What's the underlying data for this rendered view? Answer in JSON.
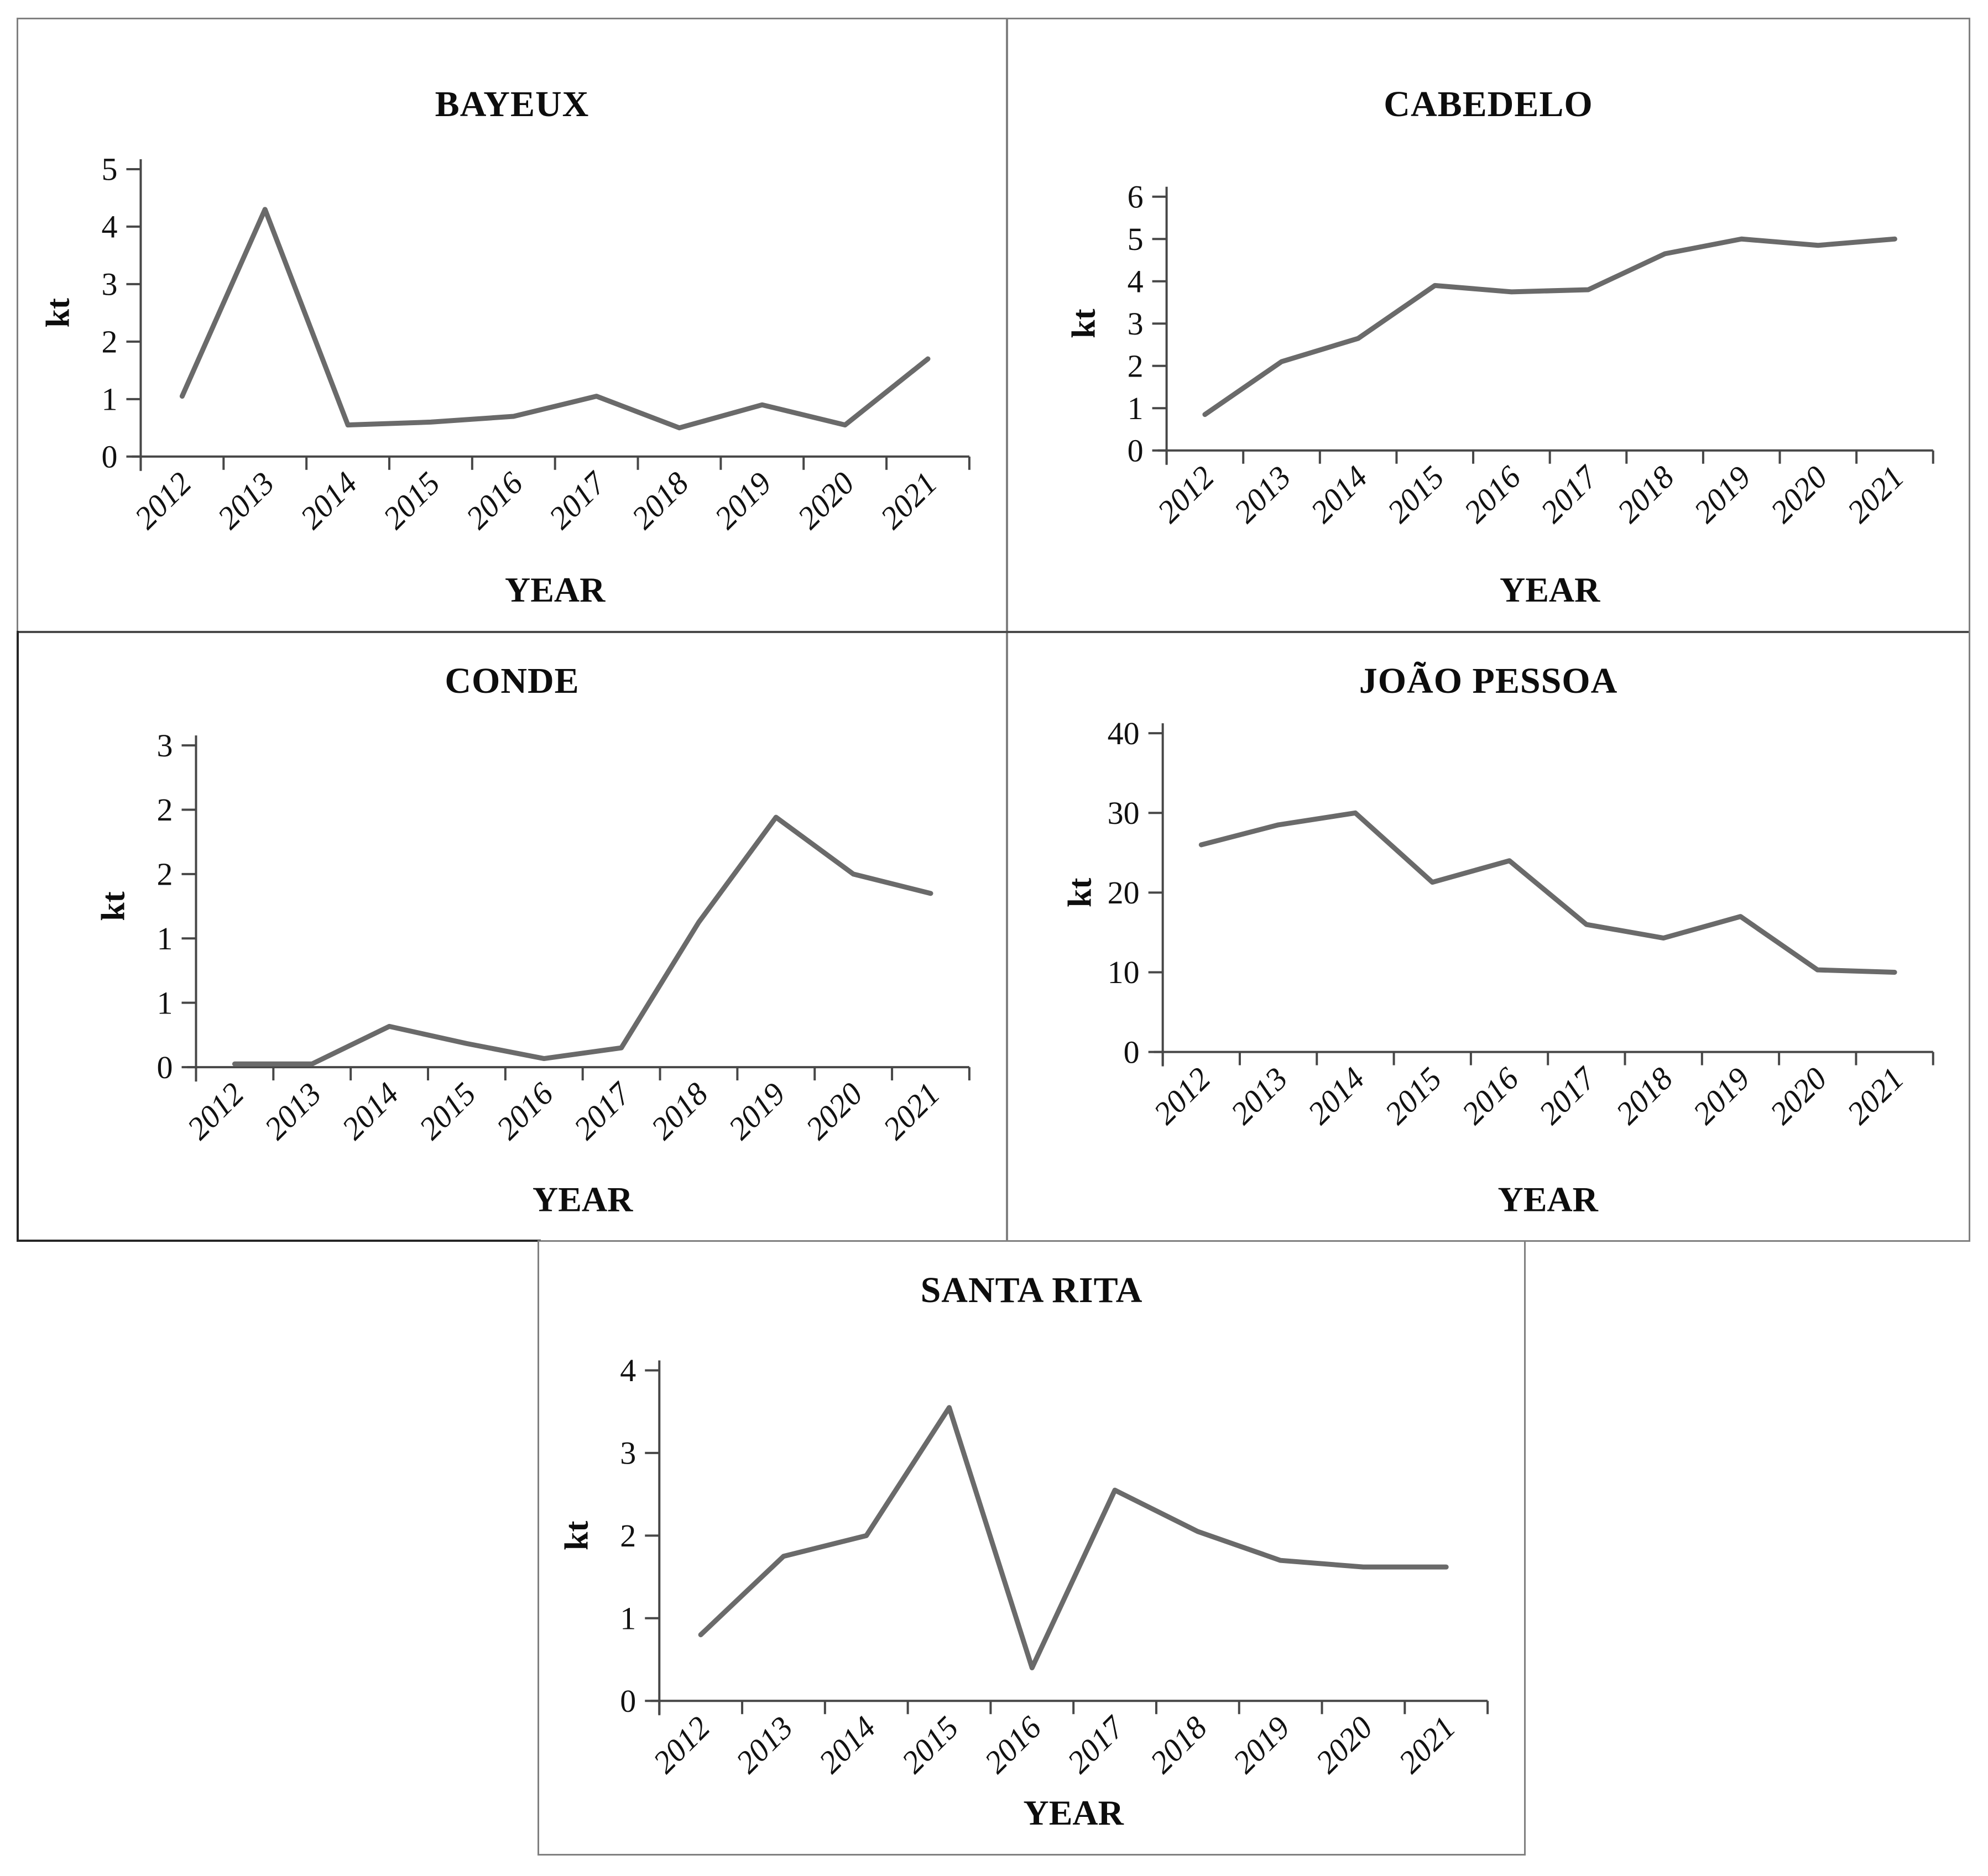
{
  "figure": {
    "description": "Five small line charts of kt by YEAR (2012-2021) for municipalities",
    "line_color": "#6a6a6a",
    "axis_color": "#474747",
    "border_color": "#808080"
  },
  "chart_data": [
    {
      "type": "line",
      "title": "BAYEUX",
      "ylabel": "kt",
      "xlabel": "YEAR",
      "x": [
        "2012",
        "2013",
        "2014",
        "2015",
        "2016",
        "2017",
        "2018",
        "2019",
        "2020",
        "2021"
      ],
      "values": [
        1.05,
        4.3,
        0.55,
        0.6,
        0.7,
        1.05,
        0.5,
        0.9,
        0.55,
        1.7
      ],
      "ylim": [
        0,
        5
      ],
      "yticks": [
        {
          "v": 0,
          "label": "0"
        },
        {
          "v": 1,
          "label": "1"
        },
        {
          "v": 2,
          "label": "2"
        },
        {
          "v": 3,
          "label": "3"
        },
        {
          "v": 4,
          "label": "4"
        },
        {
          "v": 5,
          "label": "5"
        }
      ],
      "grid": false,
      "legend": "none"
    },
    {
      "type": "line",
      "title": "CABEDELO",
      "ylabel": "kt",
      "xlabel": "YEAR",
      "x": [
        "2012",
        "2013",
        "2014",
        "2015",
        "2016",
        "2017",
        "2018",
        "2019",
        "2020",
        "2021"
      ],
      "values": [
        0.85,
        2.1,
        2.65,
        3.9,
        3.75,
        3.8,
        4.65,
        5.0,
        4.85,
        5.0
      ],
      "ylim": [
        0,
        6
      ],
      "yticks": [
        {
          "v": 0,
          "label": "0"
        },
        {
          "v": 1,
          "label": "1"
        },
        {
          "v": 2,
          "label": "2"
        },
        {
          "v": 3,
          "label": "3"
        },
        {
          "v": 4,
          "label": "4"
        },
        {
          "v": 5,
          "label": "5"
        },
        {
          "v": 6,
          "label": "6"
        }
      ],
      "grid": false,
      "legend": "none"
    },
    {
      "type": "line",
      "title": "CONDE",
      "ylabel": "kt",
      "xlabel": "YEAR",
      "x": [
        "2012",
        "2013",
        "2014",
        "2015",
        "2016",
        "2017",
        "2018",
        "2019",
        "2020",
        "2021"
      ],
      "values": [
        0.03,
        0.03,
        0.38,
        0.22,
        0.08,
        0.18,
        1.35,
        2.33,
        1.8,
        1.62
      ],
      "ylim": [
        0,
        3
      ],
      "yticks": [
        {
          "v": 0,
          "label": "0"
        },
        {
          "v": 0.6,
          "label": "1"
        },
        {
          "v": 1.2,
          "label": "1"
        },
        {
          "v": 1.8,
          "label": "2"
        },
        {
          "v": 2.4,
          "label": "2"
        },
        {
          "v": 3,
          "label": "3"
        }
      ],
      "grid": false,
      "legend": "none"
    },
    {
      "type": "line",
      "title": "JOÃO PESSOA",
      "ylabel": "kt",
      "xlabel": "YEAR",
      "x": [
        "2012",
        "2013",
        "2014",
        "2015",
        "2016",
        "2017",
        "2018",
        "2019",
        "2020",
        "2021"
      ],
      "values": [
        26,
        28.5,
        30,
        21.3,
        24,
        16,
        14.3,
        17,
        10.3,
        10
      ],
      "ylim": [
        0,
        40
      ],
      "yticks": [
        {
          "v": 0,
          "label": "0"
        },
        {
          "v": 10,
          "label": "10"
        },
        {
          "v": 20,
          "label": "20"
        },
        {
          "v": 30,
          "label": "30"
        },
        {
          "v": 40,
          "label": "40"
        }
      ],
      "grid": false,
      "legend": "none"
    },
    {
      "type": "line",
      "title": "SANTA RITA",
      "ylabel": "kt",
      "xlabel": "YEAR",
      "x": [
        "2012",
        "2013",
        "2014",
        "2015",
        "2016",
        "2017",
        "2018",
        "2019",
        "2020",
        "2021"
      ],
      "values": [
        0.8,
        1.75,
        2.0,
        3.55,
        0.4,
        2.55,
        2.05,
        1.7,
        1.62,
        1.62
      ],
      "ylim": [
        0,
        4
      ],
      "yticks": [
        {
          "v": 0,
          "label": "0"
        },
        {
          "v": 1,
          "label": "1"
        },
        {
          "v": 2,
          "label": "2"
        },
        {
          "v": 3,
          "label": "3"
        },
        {
          "v": 4,
          "label": "4"
        }
      ],
      "grid": false,
      "legend": "none"
    }
  ]
}
